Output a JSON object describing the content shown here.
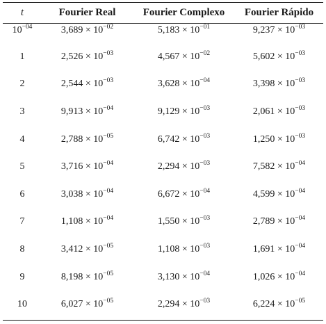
{
  "table": {
    "headers": {
      "t": "t",
      "real": "Fourier Real",
      "complexo": "Fourier Complexo",
      "rapido": "Fourier Rápido"
    },
    "rows": [
      {
        "t": {
          "base": "10",
          "exp": "−04"
        },
        "real": {
          "m": "3,689 × 10",
          "e": "−02"
        },
        "complexo": {
          "m": "5,183 × 10",
          "e": "−01"
        },
        "rapido": {
          "m": "9,237 × 10",
          "e": "−03"
        }
      },
      {
        "t": {
          "base": "1",
          "exp": ""
        },
        "real": {
          "m": "2,526 × 10",
          "e": "−03"
        },
        "complexo": {
          "m": "4,567 × 10",
          "e": "−02"
        },
        "rapido": {
          "m": "5,602 × 10",
          "e": "−03"
        }
      },
      {
        "t": {
          "base": "2",
          "exp": ""
        },
        "real": {
          "m": "2,544 × 10",
          "e": "−03"
        },
        "complexo": {
          "m": "3,628 × 10",
          "e": "−04"
        },
        "rapido": {
          "m": "3,398 × 10",
          "e": "−03"
        }
      },
      {
        "t": {
          "base": "3",
          "exp": ""
        },
        "real": {
          "m": "9,913 × 10",
          "e": "−04"
        },
        "complexo": {
          "m": "9,129 × 10",
          "e": "−03"
        },
        "rapido": {
          "m": "2,061 × 10",
          "e": "−03"
        }
      },
      {
        "t": {
          "base": "4",
          "exp": ""
        },
        "real": {
          "m": "2,788 × 10",
          "e": "−05"
        },
        "complexo": {
          "m": "6,742 × 10",
          "e": "−03"
        },
        "rapido": {
          "m": "1,250 × 10",
          "e": "−03"
        }
      },
      {
        "t": {
          "base": "5",
          "exp": ""
        },
        "real": {
          "m": "3,716 × 10",
          "e": "−04"
        },
        "complexo": {
          "m": "2,294 × 10",
          "e": "−03"
        },
        "rapido": {
          "m": "7,582 × 10",
          "e": "−04"
        }
      },
      {
        "t": {
          "base": "6",
          "exp": ""
        },
        "real": {
          "m": "3,038 × 10",
          "e": "−04"
        },
        "complexo": {
          "m": "6,672 × 10",
          "e": "−04"
        },
        "rapido": {
          "m": "4,599 × 10",
          "e": "−04"
        }
      },
      {
        "t": {
          "base": "7",
          "exp": ""
        },
        "real": {
          "m": "1,108 × 10",
          "e": "−04"
        },
        "complexo": {
          "m": "1,550 × 10",
          "e": "−03"
        },
        "rapido": {
          "m": "2,789 × 10",
          "e": "−04"
        }
      },
      {
        "t": {
          "base": "8",
          "exp": ""
        },
        "real": {
          "m": "3,412 × 10",
          "e": "−05"
        },
        "complexo": {
          "m": "1,108 × 10",
          "e": "−03"
        },
        "rapido": {
          "m": "1,691 × 10",
          "e": "−04"
        }
      },
      {
        "t": {
          "base": "9",
          "exp": ""
        },
        "real": {
          "m": "8,198 × 10",
          "e": "−05"
        },
        "complexo": {
          "m": "3,130 × 10",
          "e": "−04"
        },
        "rapido": {
          "m": "1,026 × 10",
          "e": "−04"
        }
      },
      {
        "t": {
          "base": "10",
          "exp": ""
        },
        "real": {
          "m": "6,027 × 10",
          "e": "−05"
        },
        "complexo": {
          "m": "2,294 × 10",
          "e": "−03"
        },
        "rapido": {
          "m": "6,224 × 10",
          "e": "−05"
        }
      }
    ]
  }
}
